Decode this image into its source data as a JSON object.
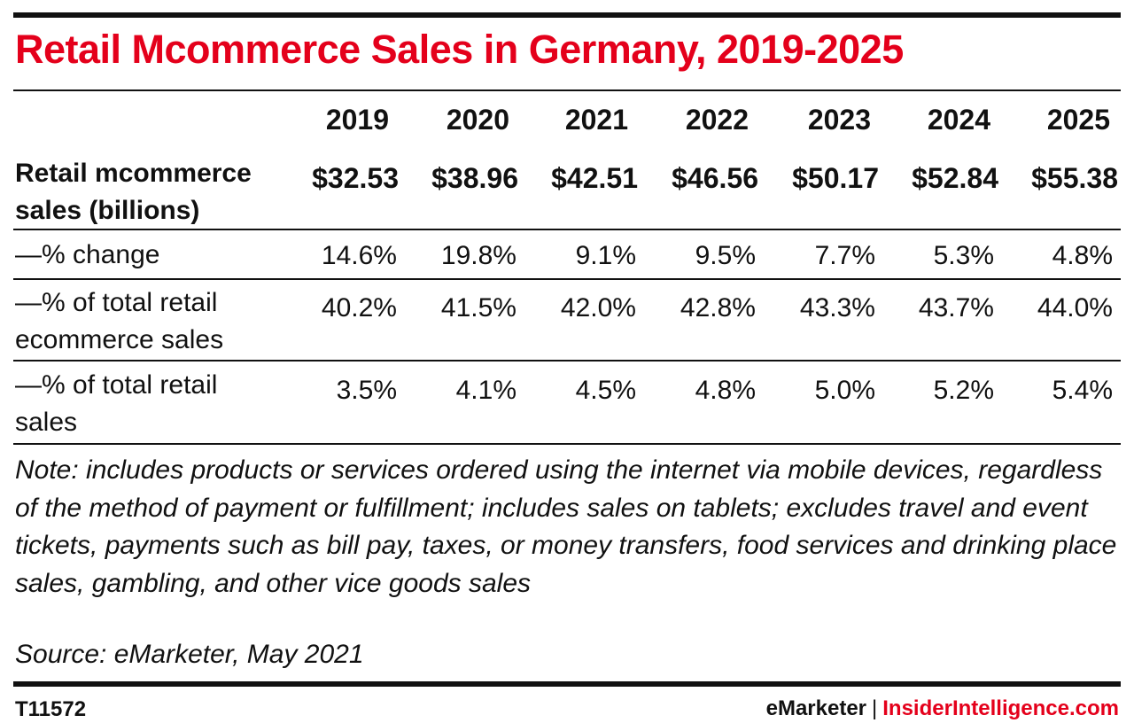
{
  "chart_data": {
    "type": "table",
    "title": "Retail Mcommerce Sales in Germany, 2019-2025",
    "columns": [
      "2019",
      "2020",
      "2021",
      "2022",
      "2023",
      "2024",
      "2025"
    ],
    "rows": [
      {
        "label_lines": [
          "Retail mcommerce",
          "sales (billions)"
        ],
        "values": [
          "$32.53",
          "$38.96",
          "$42.51",
          "$46.56",
          "$50.17",
          "$52.84",
          "$55.38"
        ]
      },
      {
        "label_lines": [
          "—% change"
        ],
        "values": [
          "14.6%",
          "19.8%",
          "9.1%",
          "9.5%",
          "7.7%",
          "5.3%",
          "4.8%"
        ]
      },
      {
        "label_lines": [
          "—% of total retail",
          "ecommerce sales"
        ],
        "values": [
          "40.2%",
          "41.5%",
          "42.0%",
          "42.8%",
          "43.3%",
          "43.7%",
          "44.0%"
        ]
      },
      {
        "label_lines": [
          "—% of total retail",
          "sales"
        ],
        "values": [
          "3.5%",
          "4.1%",
          "4.5%",
          "4.8%",
          "5.0%",
          "5.2%",
          "5.4%"
        ]
      }
    ]
  },
  "note": "Note: includes products or services ordered using the internet via mobile devices, regardless of the method of payment or fulfillment; includes sales on tablets; excludes travel and event tickets, payments such as bill pay, taxes, or money transfers, food services and drinking place sales, gambling, and other vice goods sales",
  "source": "Source: eMarketer, May 2021",
  "footer": {
    "chart_id": "T11572",
    "brand_left": "eMarketer",
    "separator": "|",
    "brand_right": "InsiderIntelligence.com"
  },
  "colors": {
    "accent": "#e4001b",
    "text": "#111111"
  }
}
